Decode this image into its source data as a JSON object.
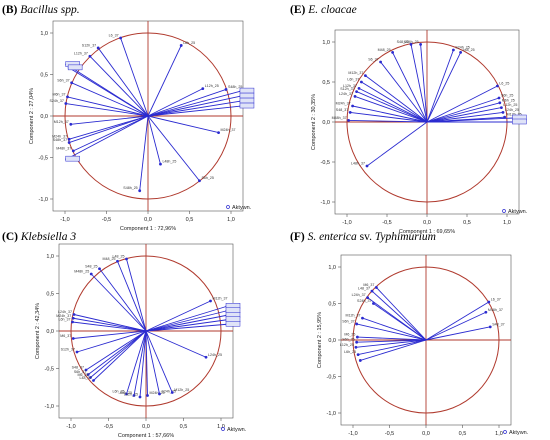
{
  "theme": {
    "circle_color": "#b03a2e",
    "axis_color": "#b03a2e",
    "vector_color": "#2b2bd0",
    "label_fill": "#dfe3f7"
  },
  "panels": [
    {
      "letter": "(B)",
      "species": "Bacillus spp.",
      "suffix": ""
    },
    {
      "letter": "(E)",
      "species": "E. cloacae",
      "suffix": ""
    },
    {
      "letter": "(C)",
      "species": "Klebsiella 3",
      "suffix": ""
    },
    {
      "letter": "(F)",
      "species": "S. enterica",
      "suffix": " sv. ",
      "species2": "Typhimurium"
    }
  ],
  "chart_data": [
    {
      "type": "scatter",
      "title": "(B) Bacillus spp.",
      "xlabel": "Component 1 : 72,96%",
      "ylabel": "Component 2 : 27,04%",
      "xlim": [
        -1.0,
        1.0
      ],
      "ylim": [
        -1.0,
        1.0
      ],
      "xticks": [
        "-1,0",
        "-0,5",
        "0,0",
        "0,5",
        "1,0"
      ],
      "yticks": [
        "1,0",
        "0,5",
        "0,0",
        "-0,5",
        "-1,0"
      ],
      "legend": "Aktywn.",
      "vectors": [
        {
          "label": "L6_37",
          "x": -0.33,
          "y": 0.94,
          "boxed": false
        },
        {
          "label": "S12h_37",
          "x": -0.6,
          "y": 0.82,
          "boxed": false
        },
        {
          "label": "L12h_37",
          "x": -0.7,
          "y": 0.72,
          "boxed": false
        },
        {
          "label": "",
          "x": -0.98,
          "y": 0.62,
          "boxed": true
        },
        {
          "label": "",
          "x": -0.95,
          "y": 0.58,
          "boxed": true
        },
        {
          "label": "S6h_37",
          "x": -0.92,
          "y": 0.4,
          "boxed": false
        },
        {
          "label": "M6h_37",
          "x": -0.97,
          "y": 0.23,
          "boxed": false
        },
        {
          "label": "S24h_37",
          "x": -0.99,
          "y": 0.15,
          "boxed": false
        },
        {
          "label": "M12h_37",
          "x": -0.93,
          "y": -0.1,
          "boxed": false
        },
        {
          "label": "M24h_37",
          "x": -0.95,
          "y": -0.28,
          "boxed": false
        },
        {
          "label": "S48h_37",
          "x": -0.95,
          "y": -0.32,
          "boxed": false
        },
        {
          "label": "M48h_37",
          "x": -0.9,
          "y": -0.42,
          "boxed": false
        },
        {
          "label": "",
          "x": -0.98,
          "y": -0.52,
          "boxed": true
        },
        {
          "label": "L6h_25",
          "x": 0.4,
          "y": 0.85,
          "boxed": false
        },
        {
          "label": "L12h_25",
          "x": 0.66,
          "y": 0.33,
          "boxed": false
        },
        {
          "label": "S48h_25",
          "x": 0.94,
          "y": 0.32,
          "boxed": false
        },
        {
          "label": "",
          "x": 1.12,
          "y": 0.3,
          "boxed": true
        },
        {
          "label": "",
          "x": 1.12,
          "y": 0.24,
          "boxed": true
        },
        {
          "label": "",
          "x": 1.12,
          "y": 0.18,
          "boxed": true
        },
        {
          "label": "",
          "x": 1.12,
          "y": 0.12,
          "boxed": true
        },
        {
          "label": "M24h_37",
          "x": 0.85,
          "y": -0.2,
          "boxed": false
        },
        {
          "label": "S6h_25",
          "x": 0.62,
          "y": -0.78,
          "boxed": false
        },
        {
          "label": "L48h_25",
          "x": 0.15,
          "y": -0.58,
          "boxed": false
        },
        {
          "label": "S48h_25",
          "x": -0.1,
          "y": -0.9,
          "boxed": false
        }
      ]
    },
    {
      "type": "scatter",
      "title": "(E) E. cloacae",
      "xlabel": "Component 1 : 69,65%",
      "ylabel": "Component 2 : 30,35%",
      "xlim": [
        -1.0,
        1.0
      ],
      "ylim": [
        -1.0,
        1.0
      ],
      "xticks": [
        "-1,0",
        "-0,5",
        "0,0",
        "0,5",
        "1,0"
      ],
      "yticks": [
        "1,0",
        "0,5",
        "0,0",
        "-0,5",
        "-1,0"
      ],
      "legend": "Aktywn.",
      "vectors": [
        {
          "label": "S48_25",
          "x": -0.2,
          "y": 0.97,
          "boxed": false
        },
        {
          "label": "M24h_25",
          "x": -0.08,
          "y": 0.97,
          "boxed": false
        },
        {
          "label": "S24h_25",
          "x": 0.33,
          "y": 0.9,
          "boxed": false
        },
        {
          "label": "L48_25",
          "x": 0.42,
          "y": 0.87,
          "boxed": false
        },
        {
          "label": "M48_25",
          "x": -0.43,
          "y": 0.87,
          "boxed": false
        },
        {
          "label": "S6_37",
          "x": -0.58,
          "y": 0.75,
          "boxed": false
        },
        {
          "label": "M12h_37",
          "x": -0.77,
          "y": 0.58,
          "boxed": false
        },
        {
          "label": "L6h_37",
          "x": -0.82,
          "y": 0.5,
          "boxed": false
        },
        {
          "label": "L12h_37",
          "x": -0.85,
          "y": 0.42,
          "boxed": false
        },
        {
          "label": "S12h_37",
          "x": -0.88,
          "y": 0.38,
          "boxed": false
        },
        {
          "label": "L24h_37",
          "x": -0.9,
          "y": 0.32,
          "boxed": false
        },
        {
          "label": "M24h_37",
          "x": -0.93,
          "y": 0.2,
          "boxed": false
        },
        {
          "label": "S48_37",
          "x": -0.96,
          "y": 0.12,
          "boxed": false
        },
        {
          "label": "M48h_37",
          "x": -0.98,
          "y": 0.02,
          "boxed": false
        },
        {
          "label": "L6_25",
          "x": 0.88,
          "y": 0.45,
          "boxed": false
        },
        {
          "label": "S6h_25",
          "x": 0.9,
          "y": 0.3,
          "boxed": false
        },
        {
          "label": "M6h_25",
          "x": 0.91,
          "y": 0.24,
          "boxed": false
        },
        {
          "label": "L12h_25",
          "x": 0.93,
          "y": 0.18,
          "boxed": false
        },
        {
          "label": "L24h_25",
          "x": 0.95,
          "y": 0.12,
          "boxed": false
        },
        {
          "label": "M12h_25",
          "x": 0.97,
          "y": 0.06,
          "boxed": false
        },
        {
          "label": "",
          "x": 1.08,
          "y": 0.05,
          "boxed": true
        },
        {
          "label": "",
          "x": 1.08,
          "y": 0.0,
          "boxed": true
        },
        {
          "label": "L48h_37",
          "x": -0.75,
          "y": -0.55,
          "boxed": false
        }
      ]
    },
    {
      "type": "scatter",
      "title": "(C) Klebsiella 3",
      "xlabel": "Component 1 : 57,66%",
      "ylabel": "Component 2 : 42,34%",
      "xlim": [
        -1.0,
        1.0
      ],
      "ylim": [
        -1.0,
        1.0
      ],
      "xticks": [
        "-1,0",
        "-0,5",
        "0,0",
        "0,5",
        "1,0"
      ],
      "yticks": [
        "1,0",
        "0,5",
        "0,0",
        "-0,5",
        "-1,0"
      ],
      "legend": "Aktywn.",
      "vectors": [
        {
          "label": "S48_25",
          "x": -0.62,
          "y": 0.83,
          "boxed": false
        },
        {
          "label": "M48h_25",
          "x": -0.73,
          "y": 0.76,
          "boxed": false
        },
        {
          "label": "M48_25",
          "x": -0.38,
          "y": 0.93,
          "boxed": false
        },
        {
          "label": "L48_25",
          "x": -0.26,
          "y": 0.96,
          "boxed": false
        },
        {
          "label": "L24h_37",
          "x": -0.96,
          "y": 0.22,
          "boxed": false
        },
        {
          "label": "M24h_37",
          "x": -0.97,
          "y": 0.17,
          "boxed": false
        },
        {
          "label": "L6h_37",
          "x": -0.98,
          "y": 0.12,
          "boxed": false
        },
        {
          "label": "M6_37",
          "x": -0.97,
          "y": -0.1,
          "boxed": false
        },
        {
          "label": "S12h_37",
          "x": -0.92,
          "y": -0.28,
          "boxed": false
        },
        {
          "label": "S48_37",
          "x": -0.8,
          "y": -0.52,
          "boxed": false
        },
        {
          "label": "S6h_37",
          "x": -0.77,
          "y": -0.58,
          "boxed": false
        },
        {
          "label": "M6_25",
          "x": -0.74,
          "y": -0.62,
          "boxed": false
        },
        {
          "label": "L48_37",
          "x": -0.7,
          "y": -0.66,
          "boxed": false
        },
        {
          "label": "L6h_25",
          "x": -0.26,
          "y": -0.84,
          "boxed": false
        },
        {
          "label": "S6h_25",
          "x": -0.16,
          "y": -0.86,
          "boxed": false
        },
        {
          "label": "L12h_25",
          "x": -0.08,
          "y": -0.88,
          "boxed": false
        },
        {
          "label": "M24h_25",
          "x": 0.02,
          "y": -0.86,
          "boxed": false
        },
        {
          "label": "S24h_25",
          "x": 0.18,
          "y": -0.84,
          "boxed": false
        },
        {
          "label": "M12h_25",
          "x": 0.35,
          "y": -0.82,
          "boxed": false
        },
        {
          "label": "M12h_37",
          "x": 0.86,
          "y": 0.4,
          "boxed": false
        },
        {
          "label": "",
          "x": 1.08,
          "y": 0.33,
          "boxed": true
        },
        {
          "label": "",
          "x": 1.08,
          "y": 0.27,
          "boxed": true
        },
        {
          "label": "",
          "x": 1.08,
          "y": 0.21,
          "boxed": true
        },
        {
          "label": "",
          "x": 1.08,
          "y": 0.15,
          "boxed": true
        },
        {
          "label": "",
          "x": 1.08,
          "y": 0.09,
          "boxed": true
        },
        {
          "label": "L24h_25",
          "x": 0.8,
          "y": -0.35,
          "boxed": false
        }
      ]
    },
    {
      "type": "scatter",
      "title": "(F) S. enterica sv. Typhimurium",
      "xlabel": "Component 1 : 78,09%",
      "ylabel": "Component 2 : 15,95%",
      "xlim": [
        -1.0,
        1.0
      ],
      "ylim": [
        -1.0,
        1.0
      ],
      "xticks": [
        "-1,0",
        "-0,5",
        "0,0",
        "0,5",
        "1,0"
      ],
      "yticks": [
        "1,0",
        "0,5",
        "0,0",
        "-0,5",
        "-1,0"
      ],
      "legend": "Aktywn.",
      "vectors": [
        {
          "label": "M6_37",
          "x": -0.68,
          "y": 0.72,
          "boxed": false
        },
        {
          "label": "L48_37",
          "x": -0.74,
          "y": 0.67,
          "boxed": false
        },
        {
          "label": "L24h_37",
          "x": -0.8,
          "y": 0.58,
          "boxed": false
        },
        {
          "label": "S24h_37",
          "x": -0.72,
          "y": 0.5,
          "boxed": false
        },
        {
          "label": "M12h_37",
          "x": -0.87,
          "y": 0.3,
          "boxed": false
        },
        {
          "label": "S6h_37",
          "x": -0.95,
          "y": 0.22,
          "boxed": false
        },
        {
          "label": "M6_25",
          "x": -0.94,
          "y": 0.04,
          "boxed": false
        },
        {
          "label": "S6h_25",
          "x": -0.95,
          "y": -0.03,
          "boxed": false
        },
        {
          "label": "L12h_25",
          "x": -0.96,
          "y": -0.1,
          "boxed": false
        },
        {
          "label": "L6h_25",
          "x": -0.93,
          "y": -0.2,
          "boxed": false
        },
        {
          "label": "",
          "x": -0.9,
          "y": -0.28,
          "boxed": false
        },
        {
          "label": "L6_37",
          "x": 0.86,
          "y": 0.52,
          "boxed": false
        },
        {
          "label": "M48h_37",
          "x": 0.82,
          "y": 0.38,
          "boxed": false
        },
        {
          "label": "S48_37",
          "x": 0.88,
          "y": 0.18,
          "boxed": false
        }
      ]
    }
  ]
}
